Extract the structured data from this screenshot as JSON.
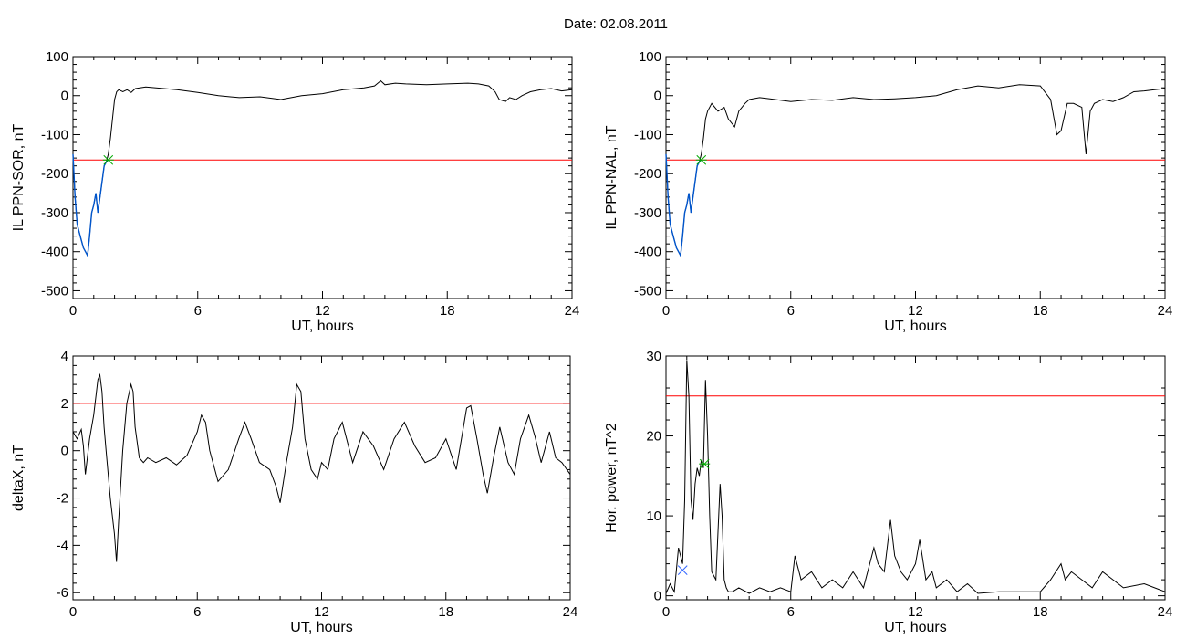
{
  "figure": {
    "title": "Date:  02.08.2011"
  },
  "chart_data": [
    {
      "id": "p1",
      "type": "line",
      "xlabel": "UT, hours",
      "ylabel": "IL PPN-SOR, nT",
      "xlim": [
        0,
        24
      ],
      "ylim": [
        -520,
        100
      ],
      "xticks": [
        0,
        6,
        12,
        18,
        24
      ],
      "yticks": [
        -500,
        -400,
        -300,
        -200,
        -100,
        0,
        100
      ],
      "threshold": -165,
      "threshold_color": "#ff0000",
      "series": [
        {
          "color": "#000000",
          "x": [
            0,
            0.1,
            0.2,
            0.3,
            0.4,
            0.5,
            0.6,
            0.7,
            0.8,
            0.9,
            1.0,
            1.1,
            1.2,
            1.3,
            1.4,
            1.5,
            1.6,
            1.7,
            1.8,
            1.9,
            2.0,
            2.1,
            2.2,
            2.4,
            2.6,
            2.8,
            3.0,
            3.5,
            4.0,
            5.0,
            6.0,
            7.0,
            8.0,
            9.0,
            10.0,
            10.5,
            11.0,
            12.0,
            13.0,
            14.0,
            14.5,
            14.8,
            15.0,
            15.5,
            16.0,
            17.0,
            18.0,
            19.0,
            19.5,
            20.0,
            20.3,
            20.5,
            20.8,
            21.0,
            21.3,
            21.6,
            22.0,
            22.5,
            23.0,
            23.5,
            24.0
          ],
          "y": [
            -150,
            -260,
            -330,
            -350,
            -370,
            -390,
            -400,
            -410,
            -360,
            -300,
            -280,
            -250,
            -300,
            -260,
            -220,
            -180,
            -170,
            -150,
            -110,
            -60,
            -10,
            10,
            15,
            10,
            15,
            8,
            18,
            22,
            20,
            15,
            8,
            0,
            -5,
            -3,
            -10,
            -5,
            0,
            5,
            15,
            20,
            25,
            38,
            28,
            32,
            30,
            28,
            30,
            32,
            30,
            25,
            10,
            -10,
            -15,
            -5,
            -10,
            0,
            10,
            15,
            18,
            12,
            15
          ]
        },
        {
          "color": "#0055cc",
          "x": [
            0,
            0.1,
            0.2,
            0.3,
            0.4,
            0.5,
            0.6,
            0.7,
            0.8,
            0.9,
            1.0,
            1.1,
            1.2,
            1.3,
            1.4,
            1.5,
            1.6,
            1.7
          ],
          "y": [
            -150,
            -260,
            -330,
            -350,
            -370,
            -390,
            -400,
            -410,
            -360,
            -300,
            -280,
            -250,
            -300,
            -260,
            -220,
            -180,
            -170,
            -165
          ]
        }
      ],
      "markers": [
        {
          "x": 1.7,
          "y": -165,
          "color": "#00aa00",
          "symbol": "star"
        }
      ]
    },
    {
      "id": "p2",
      "type": "line",
      "xlabel": "UT, hours",
      "ylabel": "IL PPN-NAL, nT",
      "xlim": [
        0,
        24
      ],
      "ylim": [
        -520,
        100
      ],
      "xticks": [
        0,
        6,
        12,
        18,
        24
      ],
      "yticks": [
        -500,
        -400,
        -300,
        -200,
        -100,
        0,
        100
      ],
      "threshold": -165,
      "threshold_color": "#ff0000",
      "series": [
        {
          "color": "#000000",
          "x": [
            0,
            0.1,
            0.2,
            0.3,
            0.4,
            0.5,
            0.6,
            0.7,
            0.8,
            0.9,
            1.0,
            1.1,
            1.2,
            1.3,
            1.4,
            1.5,
            1.6,
            1.7,
            1.8,
            1.9,
            2.0,
            2.2,
            2.5,
            2.8,
            3.0,
            3.3,
            3.5,
            3.8,
            4.0,
            4.5,
            5.0,
            6.0,
            7.0,
            8.0,
            9.0,
            10.0,
            11.0,
            12.0,
            13.0,
            14.0,
            15.0,
            16.0,
            17.0,
            18.0,
            18.5,
            18.8,
            19.0,
            19.3,
            19.6,
            20.0,
            20.2,
            20.4,
            20.6,
            21.0,
            21.5,
            22.0,
            22.5,
            23.0,
            23.5,
            24.0
          ],
          "y": [
            -150,
            -260,
            -330,
            -350,
            -370,
            -390,
            -400,
            -410,
            -360,
            -300,
            -280,
            -250,
            -300,
            -260,
            -220,
            -180,
            -170,
            -150,
            -110,
            -60,
            -40,
            -20,
            -40,
            -30,
            -60,
            -80,
            -40,
            -20,
            -10,
            -5,
            -8,
            -15,
            -10,
            -12,
            -5,
            -10,
            -8,
            -5,
            0,
            15,
            25,
            20,
            28,
            25,
            -10,
            -100,
            -90,
            -20,
            -20,
            -30,
            -150,
            -40,
            -20,
            -10,
            -15,
            -5,
            10,
            12,
            15,
            18
          ]
        },
        {
          "color": "#0055cc",
          "x": [
            0,
            0.1,
            0.2,
            0.3,
            0.4,
            0.5,
            0.6,
            0.7,
            0.8,
            0.9,
            1.0,
            1.1,
            1.2,
            1.3,
            1.4,
            1.5,
            1.6,
            1.7
          ],
          "y": [
            -150,
            -260,
            -330,
            -350,
            -370,
            -390,
            -400,
            -410,
            -360,
            -300,
            -280,
            -250,
            -300,
            -260,
            -220,
            -180,
            -170,
            -165
          ]
        }
      ],
      "markers": [
        {
          "x": 1.7,
          "y": -165,
          "color": "#00aa00",
          "symbol": "star"
        }
      ]
    },
    {
      "id": "p3",
      "type": "line",
      "xlabel": "UT, hours",
      "ylabel": "deltaX, nT",
      "xlim": [
        0,
        24
      ],
      "ylim": [
        -6.3,
        4
      ],
      "xticks": [
        0,
        6,
        12,
        18,
        24
      ],
      "yticks": [
        -6,
        -4,
        -2,
        0,
        2,
        4
      ],
      "threshold": 2,
      "threshold_color": "#ff0000",
      "series": [
        {
          "color": "#000000",
          "x": [
            0,
            0.2,
            0.4,
            0.5,
            0.6,
            0.8,
            1.0,
            1.2,
            1.3,
            1.4,
            1.5,
            1.6,
            1.8,
            2.0,
            2.1,
            2.2,
            2.4,
            2.6,
            2.8,
            2.9,
            3.0,
            3.2,
            3.4,
            3.6,
            4.0,
            4.5,
            5.0,
            5.5,
            6.0,
            6.2,
            6.4,
            6.6,
            7.0,
            7.5,
            8.0,
            8.3,
            8.6,
            9.0,
            9.5,
            9.8,
            10.0,
            10.3,
            10.6,
            10.8,
            11.0,
            11.2,
            11.5,
            11.8,
            12.0,
            12.3,
            12.6,
            13.0,
            13.5,
            14.0,
            14.5,
            15.0,
            15.5,
            16.0,
            16.5,
            17.0,
            17.5,
            18.0,
            18.5,
            19.0,
            19.2,
            19.5,
            19.8,
            20.0,
            20.3,
            20.6,
            21.0,
            21.3,
            21.6,
            22.0,
            22.3,
            22.6,
            23.0,
            23.3,
            23.6,
            24.0
          ],
          "y": [
            0.8,
            0.5,
            0.9,
            0.2,
            -1.0,
            0.5,
            1.5,
            3.0,
            3.2,
            2.5,
            1.0,
            0,
            -2.0,
            -3.5,
            -4.7,
            -3.0,
            0,
            2.0,
            2.8,
            2.5,
            1.0,
            -0.3,
            -0.5,
            -0.3,
            -0.5,
            -0.3,
            -0.6,
            -0.2,
            0.8,
            1.5,
            1.2,
            0,
            -1.3,
            -0.8,
            0.5,
            1.2,
            0.5,
            -0.5,
            -0.8,
            -1.5,
            -2.2,
            -0.5,
            1.0,
            2.8,
            2.5,
            0.5,
            -0.8,
            -1.2,
            -0.5,
            -0.8,
            0.5,
            1.2,
            -0.5,
            0.8,
            0.2,
            -0.8,
            0.5,
            1.2,
            0.2,
            -0.5,
            -0.3,
            0.5,
            -0.8,
            1.8,
            1.9,
            0.5,
            -1.0,
            -1.8,
            -0.3,
            1.0,
            -0.5,
            -1.0,
            0.5,
            1.5,
            0.6,
            -0.5,
            0.8,
            -0.3,
            -0.5,
            -1.0
          ]
        }
      ],
      "markers": []
    },
    {
      "id": "p4",
      "type": "line",
      "xlabel": "UT, hours",
      "ylabel": "Hor. power, nT^2",
      "xlim": [
        0,
        24
      ],
      "ylim": [
        -0.5,
        30
      ],
      "xticks": [
        0,
        6,
        12,
        18,
        24
      ],
      "yticks": [
        0,
        10,
        20,
        30
      ],
      "threshold": 25,
      "threshold_color": "#ff0000",
      "series": [
        {
          "color": "#000000",
          "x": [
            0,
            0.2,
            0.4,
            0.6,
            0.8,
            0.9,
            1.0,
            1.1,
            1.2,
            1.3,
            1.4,
            1.5,
            1.6,
            1.7,
            1.8,
            1.9,
            2.0,
            2.1,
            2.2,
            2.4,
            2.6,
            2.7,
            2.8,
            2.9,
            3.0,
            3.2,
            3.5,
            4.0,
            4.5,
            5.0,
            5.5,
            6.0,
            6.2,
            6.5,
            7.0,
            7.5,
            8.0,
            8.5,
            9.0,
            9.5,
            10.0,
            10.2,
            10.5,
            10.8,
            11.0,
            11.3,
            11.6,
            12.0,
            12.2,
            12.5,
            12.8,
            13.0,
            13.5,
            14.0,
            14.5,
            15.0,
            16.0,
            17.0,
            18.0,
            18.5,
            19.0,
            19.2,
            19.5,
            20.0,
            20.5,
            21.0,
            21.5,
            22.0,
            23.0,
            24.0
          ],
          "y": [
            0.3,
            1.5,
            0.5,
            6.0,
            4.0,
            12.0,
            29.5,
            25.0,
            12.0,
            9.5,
            14.0,
            16.0,
            15.0,
            17.0,
            16.0,
            27.0,
            20.0,
            10.0,
            3.0,
            2.0,
            14.0,
            10.0,
            2.0,
            1.0,
            0.5,
            0.5,
            1.0,
            0.3,
            1.0,
            0.5,
            1.0,
            0.5,
            5.0,
            2.0,
            3.0,
            1.0,
            2.0,
            1.0,
            3.0,
            1.0,
            6.0,
            4.0,
            3.0,
            9.5,
            5.0,
            3.0,
            2.0,
            4.0,
            7.0,
            2.0,
            3.0,
            1.0,
            2.0,
            0.5,
            1.5,
            0.3,
            0.5,
            0.5,
            0.5,
            2.0,
            4.0,
            2.0,
            3.0,
            2.0,
            1.0,
            3.0,
            2.0,
            1.0,
            1.5,
            0.5
          ]
        }
      ],
      "markers": [
        {
          "x": 0.8,
          "y": 3.2,
          "color": "#3366ff",
          "symbol": "x"
        },
        {
          "x": 1.85,
          "y": 16.5,
          "color": "#00aa00",
          "symbol": "star"
        }
      ]
    }
  ]
}
